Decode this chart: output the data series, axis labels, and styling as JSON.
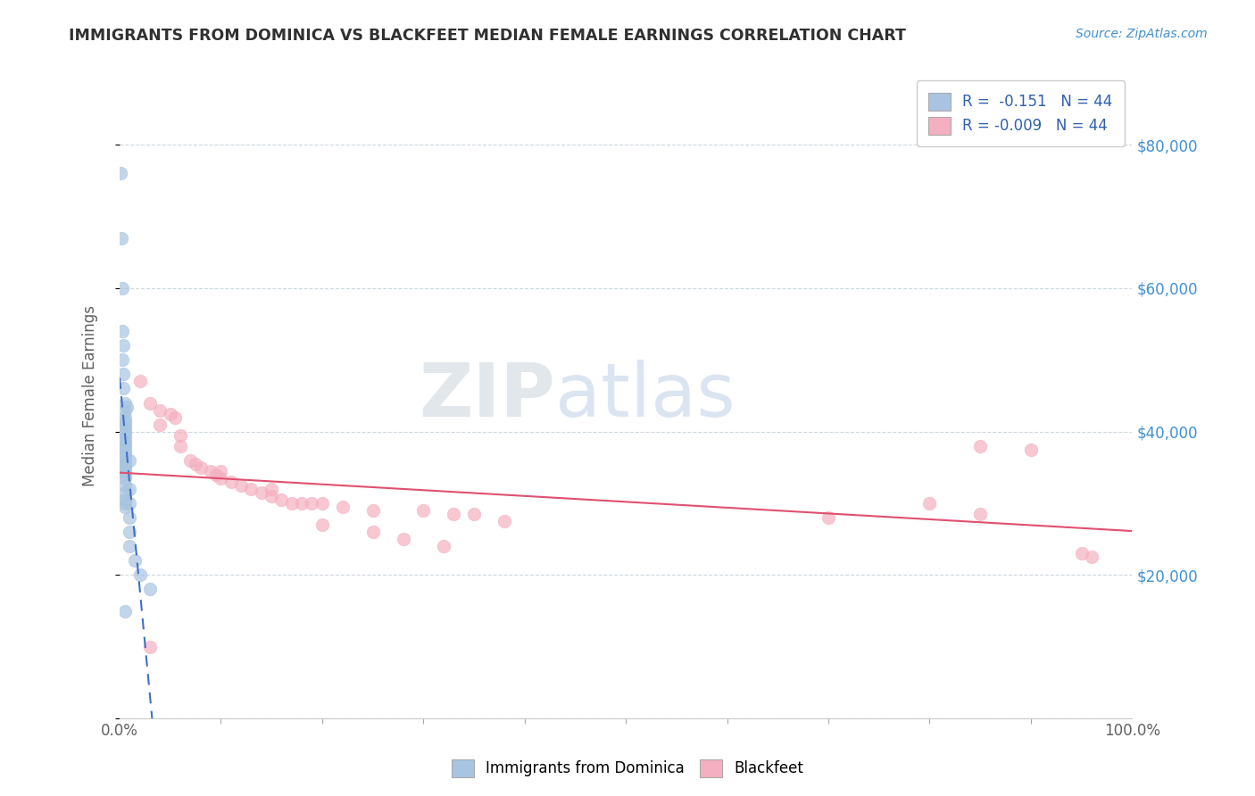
{
  "title": "IMMIGRANTS FROM DOMINICA VS BLACKFEET MEDIAN FEMALE EARNINGS CORRELATION CHART",
  "source": "Source: ZipAtlas.com",
  "ylabel": "Median Female Earnings",
  "xlim": [
    0.0,
    1.0
  ],
  "ylim": [
    0,
    90000
  ],
  "yticks": [
    0,
    20000,
    40000,
    60000,
    80000
  ],
  "ytick_labels": [
    "",
    "$20,000",
    "$40,000",
    "$60,000",
    "$80,000"
  ],
  "r_dominica": -0.151,
  "r_blackfeet": -0.009,
  "n_dominica": 44,
  "n_blackfeet": 44,
  "legend_label_1": "Immigrants from Dominica",
  "legend_label_2": "Blackfeet",
  "dominica_color": "#a8c4e0",
  "blackfeet_color": "#f4b0c0",
  "dominica_line_color": "#4070c8",
  "blackfeet_line_color": "#e05070",
  "dominica_line_dashed": true,
  "background_color": "#ffffff",
  "title_color": "#303030",
  "axis_label_color": "#606060",
  "right_ytick_color": "#4090d0",
  "grid_color": "#c8d4dc",
  "dominica_scatter": [
    [
      0.001,
      76000
    ],
    [
      0.002,
      67000
    ],
    [
      0.003,
      54000
    ],
    [
      0.003,
      50000
    ],
    [
      0.004,
      52000
    ],
    [
      0.004,
      48000
    ],
    [
      0.004,
      46000
    ],
    [
      0.005,
      44000
    ],
    [
      0.005,
      43000
    ],
    [
      0.005,
      42000
    ],
    [
      0.005,
      41500
    ],
    [
      0.005,
      41000
    ],
    [
      0.005,
      40500
    ],
    [
      0.005,
      40000
    ],
    [
      0.005,
      39500
    ],
    [
      0.005,
      39000
    ],
    [
      0.005,
      38500
    ],
    [
      0.005,
      38000
    ],
    [
      0.005,
      37500
    ],
    [
      0.005,
      37000
    ],
    [
      0.005,
      36500
    ],
    [
      0.005,
      36000
    ],
    [
      0.005,
      35500
    ],
    [
      0.005,
      35000
    ],
    [
      0.005,
      34500
    ],
    [
      0.005,
      34000
    ],
    [
      0.005,
      33500
    ],
    [
      0.005,
      32500
    ],
    [
      0.005,
      31500
    ],
    [
      0.005,
      30500
    ],
    [
      0.005,
      30000
    ],
    [
      0.005,
      29500
    ],
    [
      0.01,
      36000
    ],
    [
      0.01,
      32000
    ],
    [
      0.01,
      30000
    ],
    [
      0.01,
      28000
    ],
    [
      0.01,
      26000
    ],
    [
      0.01,
      24000
    ],
    [
      0.015,
      22000
    ],
    [
      0.02,
      20000
    ],
    [
      0.03,
      18000
    ],
    [
      0.003,
      60000
    ],
    [
      0.007,
      43500
    ],
    [
      0.005,
      15000
    ]
  ],
  "blackfeet_scatter": [
    [
      0.02,
      47000
    ],
    [
      0.03,
      44000
    ],
    [
      0.04,
      43000
    ],
    [
      0.05,
      42500
    ],
    [
      0.055,
      42000
    ],
    [
      0.06,
      38000
    ],
    [
      0.07,
      36000
    ],
    [
      0.075,
      35500
    ],
    [
      0.08,
      35000
    ],
    [
      0.09,
      34500
    ],
    [
      0.095,
      34000
    ],
    [
      0.1,
      33500
    ],
    [
      0.11,
      33000
    ],
    [
      0.12,
      32500
    ],
    [
      0.13,
      32000
    ],
    [
      0.14,
      31500
    ],
    [
      0.15,
      31000
    ],
    [
      0.16,
      30500
    ],
    [
      0.17,
      30000
    ],
    [
      0.18,
      30000
    ],
    [
      0.19,
      30000
    ],
    [
      0.2,
      30000
    ],
    [
      0.22,
      29500
    ],
    [
      0.25,
      29000
    ],
    [
      0.3,
      29000
    ],
    [
      0.33,
      28500
    ],
    [
      0.04,
      41000
    ],
    [
      0.06,
      39500
    ],
    [
      0.1,
      34500
    ],
    [
      0.15,
      32000
    ],
    [
      0.2,
      27000
    ],
    [
      0.25,
      26000
    ],
    [
      0.28,
      25000
    ],
    [
      0.32,
      24000
    ],
    [
      0.35,
      28500
    ],
    [
      0.38,
      27500
    ],
    [
      0.85,
      38000
    ],
    [
      0.9,
      37500
    ],
    [
      0.85,
      28500
    ],
    [
      0.95,
      23000
    ],
    [
      0.96,
      22500
    ],
    [
      0.7,
      28000
    ],
    [
      0.8,
      30000
    ],
    [
      0.03,
      10000
    ]
  ]
}
